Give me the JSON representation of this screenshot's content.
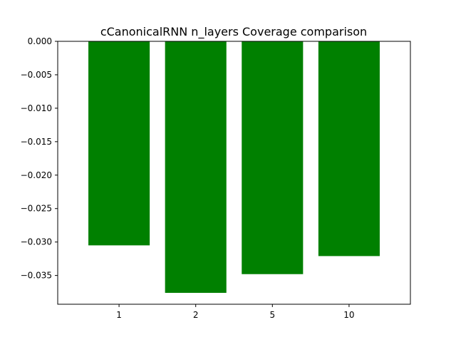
{
  "chart_data": {
    "type": "bar",
    "title": "cCanonicalRNN n_layers Coverage comparison",
    "xlabel": "",
    "ylabel": "",
    "categories": [
      "1",
      "2",
      "5",
      "10"
    ],
    "values": [
      -0.0305,
      -0.0376,
      -0.0348,
      -0.0321
    ],
    "ylim": [
      -0.0393,
      0.0
    ],
    "yticks": [
      0.0,
      -0.005,
      -0.01,
      -0.015,
      -0.02,
      -0.025,
      -0.03,
      -0.035
    ],
    "ytick_labels": [
      "0.000",
      "−0.005",
      "−0.010",
      "−0.015",
      "−0.020",
      "−0.025",
      "−0.030",
      "−0.035"
    ],
    "bar_color": "#008000",
    "grid": false,
    "legend": "none"
  }
}
